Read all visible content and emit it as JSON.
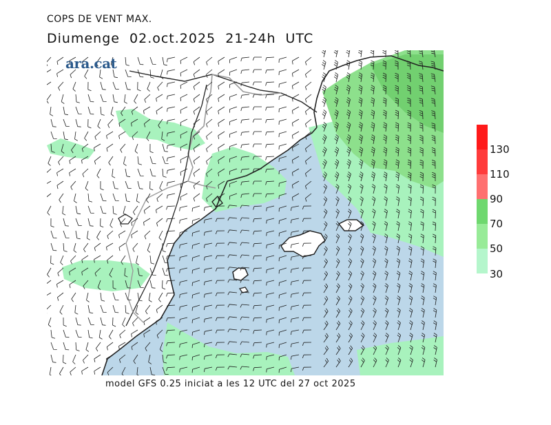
{
  "title_main": "COPS DE VENT MAX.",
  "title_date": "Diumenge  02.oct.2025  21-24h  UTC",
  "logo_text": "ara.cat",
  "footer_text": "model GFS 0.25 iniciat a les 12 UTC del 27 oct 2025",
  "legend": {
    "labels": [
      "130",
      "110",
      "90",
      "70",
      "50",
      "30"
    ],
    "colors": [
      "#ff1a1a",
      "#ff3b3b",
      "#ff7070",
      "#6fd86f",
      "#98eb98",
      "#b5f6cc"
    ]
  },
  "colors": {
    "sea": "#bcd7e9",
    "land": "#ffffff",
    "wind_30_50": "#a8f2bd",
    "wind_50_70": "#8de08c",
    "wind_70_90": "#6fd06f",
    "coast": "#222222",
    "border": "#9a9a9a",
    "barb": "#1a1a1a"
  }
}
